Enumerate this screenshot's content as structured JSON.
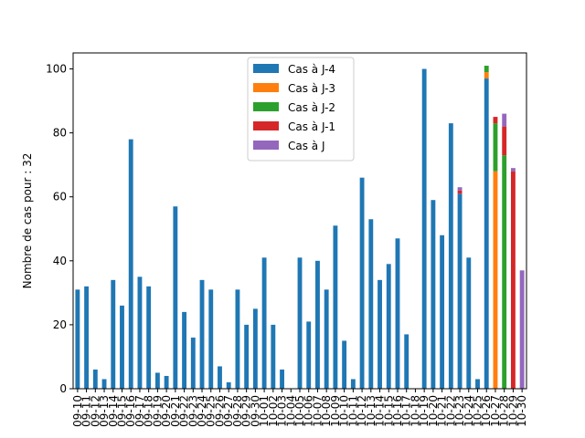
{
  "chart_data": {
    "type": "bar",
    "stacked": true,
    "ylabel": "Nombre de cas pour : 32",
    "xlabel": "",
    "ylim": [
      0,
      105
    ],
    "yticks": [
      0,
      20,
      40,
      60,
      80,
      100
    ],
    "grid": false,
    "legend_position": "top-center",
    "categories": [
      "09-10",
      "09-11",
      "09-12",
      "09-13",
      "09-14",
      "09-15",
      "09-16",
      "09-17",
      "09-18",
      "09-19",
      "09-20",
      "09-21",
      "09-22",
      "09-23",
      "09-24",
      "09-25",
      "09-26",
      "09-27",
      "09-28",
      "09-29",
      "09-30",
      "10-01",
      "10-02",
      "10-03",
      "10-04",
      "10-05",
      "10-06",
      "10-07",
      "10-08",
      "10-09",
      "10-10",
      "10-11",
      "10-12",
      "10-13",
      "10-14",
      "10-15",
      "10-16",
      "10-17",
      "10-18",
      "10-19",
      "10-20",
      "10-21",
      "10-22",
      "10-23",
      "10-24",
      "10-25",
      "10-26",
      "10-27",
      "10-28",
      "10-29",
      "10-30"
    ],
    "series": [
      {
        "name": "Cas à J-4",
        "color": "#1f77b4",
        "values": [
          31,
          32,
          6,
          3,
          34,
          26,
          78,
          35,
          32,
          5,
          4,
          57,
          24,
          16,
          34,
          31,
          7,
          2,
          31,
          20,
          25,
          41,
          20,
          6,
          0,
          41,
          21,
          40,
          31,
          51,
          15,
          3,
          66,
          53,
          34,
          39,
          47,
          17,
          0,
          100,
          59,
          48,
          83,
          61,
          41,
          3,
          97,
          0,
          0,
          0,
          0
        ]
      },
      {
        "name": "Cas à J-3",
        "color": "#ff7f0e",
        "values": [
          0,
          0,
          0,
          0,
          0,
          0,
          0,
          0,
          0,
          0,
          0,
          0,
          0,
          0,
          0,
          0,
          0,
          0,
          0,
          0,
          0,
          0,
          0,
          0,
          0,
          0,
          0,
          0,
          0,
          0,
          0,
          0,
          0,
          0,
          0,
          0,
          0,
          0,
          0,
          0,
          0,
          0,
          0,
          0,
          0,
          0,
          2,
          68,
          0,
          0,
          0
        ]
      },
      {
        "name": "Cas à J-2",
        "color": "#2ca02c",
        "values": [
          0,
          0,
          0,
          0,
          0,
          0,
          0,
          0,
          0,
          0,
          0,
          0,
          0,
          0,
          0,
          0,
          0,
          0,
          0,
          0,
          0,
          0,
          0,
          0,
          0,
          0,
          0,
          0,
          0,
          0,
          0,
          0,
          0,
          0,
          0,
          0,
          0,
          0,
          0,
          0,
          0,
          0,
          0,
          0,
          0,
          0,
          2,
          15,
          73,
          0,
          0
        ]
      },
      {
        "name": "Cas à J-1",
        "color": "#d62728",
        "values": [
          0,
          0,
          0,
          0,
          0,
          0,
          0,
          0,
          0,
          0,
          0,
          0,
          0,
          0,
          0,
          0,
          0,
          0,
          0,
          0,
          0,
          0,
          0,
          0,
          0,
          0,
          0,
          0,
          0,
          0,
          0,
          0,
          0,
          0,
          0,
          0,
          0,
          0,
          0,
          0,
          0,
          0,
          0,
          1,
          0,
          0,
          0,
          2,
          9,
          68,
          0
        ]
      },
      {
        "name": "Cas à J",
        "color": "#9467bd",
        "values": [
          0,
          0,
          0,
          0,
          0,
          0,
          0,
          0,
          0,
          0,
          0,
          0,
          0,
          0,
          0,
          0,
          0,
          0,
          0,
          0,
          0,
          0,
          0,
          0,
          0,
          0,
          0,
          0,
          0,
          0,
          0,
          0,
          0,
          0,
          0,
          0,
          0,
          0,
          0,
          0,
          0,
          0,
          0,
          1,
          0,
          0,
          0,
          0,
          4,
          1,
          37
        ]
      }
    ]
  }
}
